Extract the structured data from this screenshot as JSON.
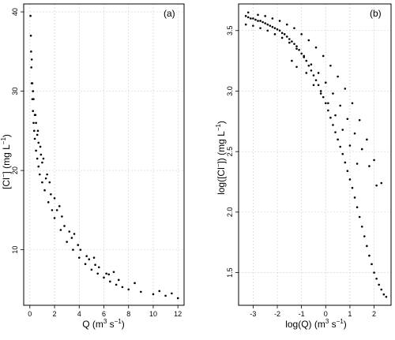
{
  "chart_data": [
    {
      "type": "scatter",
      "panel": "(a)",
      "xlabel": {
        "main": "Q  (m",
        "sup1": "3",
        "mid": " s",
        "sup2": "−1",
        "end": ")"
      },
      "ylabel": {
        "pre": "[Cl",
        "sup1": "−",
        "mid": "]  (mg L",
        "sup2": "−1",
        "end": ")"
      },
      "xlim": [
        -0.5,
        12.5
      ],
      "ylim": [
        3,
        41
      ],
      "xticks": [
        0,
        2,
        4,
        6,
        8,
        10,
        12
      ],
      "yticks": [
        10,
        20,
        30,
        40
      ],
      "grid": true,
      "series": [
        {
          "x": [
            0.05,
            0.08,
            0.1,
            0.12,
            0.15,
            0.2,
            0.25,
            0.3,
            0.35,
            0.4,
            0.5,
            0.6,
            0.7,
            0.8,
            1.0,
            1.2,
            1.5,
            1.8,
            2.0,
            2.5,
            3.0,
            3.5,
            4.0,
            4.5,
            5.0,
            5.5,
            6.0,
            6.5,
            7.0,
            7.5,
            8.0,
            9.0,
            10.0,
            11.0,
            12.0,
            0.2,
            0.3,
            0.5,
            0.7,
            1.0,
            1.3,
            1.7,
            2.2,
            2.8,
            3.4,
            4.1,
            4.8,
            5.6,
            6.4,
            7.2,
            0.4,
            0.6,
            0.9,
            1.4,
            2.0,
            2.6,
            3.2,
            3.9,
            4.6,
            5.3,
            6.2,
            0.15,
            0.25,
            0.45,
            0.65,
            0.85,
            1.1,
            1.6,
            2.4,
            3.6,
            5.2,
            6.8,
            8.5,
            10.5,
            11.5
          ],
          "y": [
            39.5,
            37,
            35,
            33,
            31,
            29,
            27.5,
            26,
            25,
            24,
            22.5,
            21.5,
            20.5,
            19.5,
            18.5,
            17.5,
            16,
            15,
            14,
            12.5,
            11,
            10,
            9,
            8.2,
            7.5,
            7.0,
            6.5,
            6.0,
            5.6,
            5.3,
            5.0,
            4.7,
            4.4,
            4.2,
            3.9,
            31,
            29,
            26,
            23.5,
            21,
            19,
            17,
            15,
            13,
            11.5,
            10,
            8.8,
            7.8,
            6.9,
            6.2,
            27,
            24.5,
            22,
            19.5,
            16.5,
            14.2,
            12.3,
            10.6,
            9.2,
            8.1,
            7.0,
            34,
            30,
            27,
            25,
            23,
            21.5,
            18.5,
            15.5,
            12,
            9.0,
            7.2,
            5.8,
            4.8,
            4.5
          ]
        }
      ]
    },
    {
      "type": "scatter",
      "panel": "(b)",
      "xlabel": {
        "main": "log(Q)  (m",
        "sup1": "3",
        "mid": " s",
        "sup2": "−1",
        "end": ")"
      },
      "ylabel": {
        "pre": "log([Cl",
        "sup1": "−",
        "mid": "])  (mg L",
        "sup2": "−1",
        "end": ")"
      },
      "xlim": [
        -3.6,
        2.7
      ],
      "ylim": [
        1.23,
        3.72
      ],
      "xticks": [
        -3,
        -2,
        -1,
        0,
        1,
        2
      ],
      "yticks": [
        1.5,
        2.0,
        2.5,
        3.0,
        3.5
      ],
      "grid": true,
      "series": [
        {
          "x": [
            -3.3,
            -3.2,
            -3.1,
            -3.0,
            -2.9,
            -2.8,
            -2.7,
            -2.6,
            -2.5,
            -2.4,
            -2.3,
            -2.2,
            -2.1,
            -2.0,
            -1.9,
            -1.8,
            -1.7,
            -1.6,
            -1.5,
            -1.4,
            -1.3,
            -1.2,
            -1.1,
            -1.0,
            -0.9,
            -0.8,
            -0.7,
            -0.6,
            -0.5,
            -0.4,
            -0.3,
            -0.2,
            -0.1,
            0.0,
            0.1,
            0.2,
            0.3,
            0.4,
            0.5,
            0.6,
            0.7,
            0.8,
            0.9,
            1.0,
            1.1,
            1.2,
            1.3,
            1.4,
            1.5,
            1.6,
            1.7,
            1.8,
            1.9,
            2.0,
            2.1,
            2.2,
            2.3,
            2.4,
            2.5,
            -3.3,
            -3.0,
            -2.7,
            -2.4,
            -2.1,
            -1.8,
            -1.5,
            -1.2,
            -0.9,
            -0.6,
            -0.3,
            0.0,
            0.3,
            0.6,
            0.9,
            1.2,
            1.5,
            1.8,
            2.1,
            -3.2,
            -2.8,
            -2.5,
            -2.2,
            -1.9,
            -1.6,
            -1.3,
            -1.0,
            -0.7,
            -0.4,
            -0.1,
            0.2,
            0.5,
            0.8,
            1.1,
            1.4,
            1.7,
            2.0,
            2.3,
            -1.4,
            -1.2,
            -0.8,
            -0.5,
            -0.2,
            0.1,
            0.4,
            0.7,
            1.0,
            1.3
          ],
          "y": [
            3.62,
            3.61,
            3.6,
            3.6,
            3.59,
            3.58,
            3.58,
            3.57,
            3.56,
            3.55,
            3.54,
            3.53,
            3.52,
            3.51,
            3.5,
            3.48,
            3.47,
            3.45,
            3.43,
            3.41,
            3.39,
            3.37,
            3.34,
            3.31,
            3.28,
            3.25,
            3.21,
            3.17,
            3.13,
            3.09,
            3.05,
            3.0,
            2.95,
            2.9,
            2.84,
            2.78,
            2.72,
            2.66,
            2.6,
            2.54,
            2.48,
            2.41,
            2.34,
            2.27,
            2.2,
            2.12,
            2.04,
            1.96,
            1.88,
            1.8,
            1.72,
            1.64,
            1.57,
            1.5,
            1.45,
            1.4,
            1.36,
            1.32,
            1.3,
            3.55,
            3.54,
            3.52,
            3.5,
            3.47,
            3.44,
            3.4,
            3.35,
            3.29,
            3.22,
            3.15,
            3.07,
            2.98,
            2.88,
            2.77,
            2.65,
            2.52,
            2.38,
            2.22,
            3.65,
            3.63,
            3.62,
            3.6,
            3.58,
            3.55,
            3.52,
            3.47,
            3.42,
            3.36,
            3.29,
            3.21,
            3.12,
            3.02,
            2.9,
            2.76,
            2.6,
            2.43,
            2.24,
            3.25,
            3.2,
            3.15,
            3.05,
            2.98,
            2.9,
            2.8,
            2.68,
            2.55,
            2.4
          ]
        }
      ]
    }
  ]
}
